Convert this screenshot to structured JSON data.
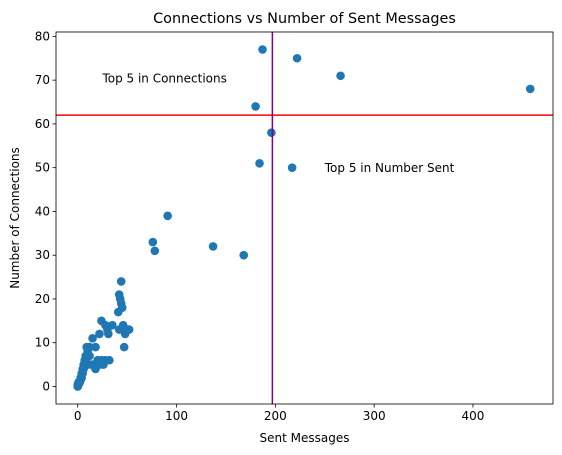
{
  "chart_data": {
    "type": "scatter",
    "title": "Connections vs Number of Sent Messages",
    "xlabel": "Sent Messages",
    "ylabel": "Number of Connections",
    "xlim": [
      -22,
      481
    ],
    "ylim": [
      -4,
      81
    ],
    "xticks": [
      0,
      100,
      200,
      300,
      400
    ],
    "yticks": [
      0,
      10,
      20,
      30,
      40,
      50,
      60,
      70,
      80
    ],
    "grid": false,
    "colors": {
      "points": "#1f77b4",
      "hline": "#ff0000",
      "vline": "#800080"
    },
    "series": [
      {
        "x": [
          458,
          266,
          222,
          187,
          180,
          196,
          184,
          217,
          91,
          76,
          78,
          137,
          168,
          44,
          42,
          43,
          44,
          45,
          41,
          46,
          42,
          50,
          48,
          52,
          47,
          24,
          22,
          28,
          31,
          30,
          18,
          15,
          12,
          10,
          9,
          8,
          7,
          6,
          5,
          4,
          3,
          2,
          1,
          0,
          20,
          22,
          24,
          26,
          32,
          28,
          35,
          12,
          16,
          18,
          14,
          10,
          8,
          6,
          5,
          4,
          3,
          2,
          1,
          0,
          0,
          1,
          2,
          3
        ],
        "y": [
          68,
          71,
          75,
          77,
          64,
          58,
          51,
          50,
          39,
          33,
          31,
          32,
          30,
          24,
          21,
          20,
          19,
          18,
          17,
          14,
          13,
          13,
          12,
          13,
          9,
          15,
          12,
          14,
          12,
          13,
          9,
          11,
          9,
          8,
          9,
          7,
          6,
          5,
          4,
          3,
          2,
          1,
          1,
          0,
          6,
          5,
          6,
          5,
          6,
          6,
          14,
          7,
          5,
          4,
          5,
          5,
          6,
          4,
          3,
          2,
          2,
          1,
          1,
          0,
          0.5,
          0.5,
          1,
          1.5
        ]
      }
    ],
    "hline": 62,
    "vline": 197,
    "annotations": [
      {
        "text": "Top 5 in Connections",
        "x": 25,
        "y": 69.5
      },
      {
        "text": "Top 5 in Number Sent",
        "x": 250,
        "y": 49
      }
    ]
  }
}
